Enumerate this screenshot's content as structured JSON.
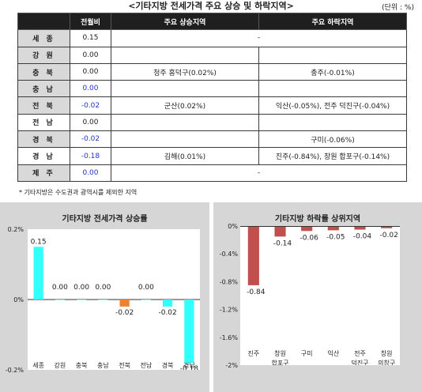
{
  "header": {
    "title": "<기타지방 전세가격 주요 상승 및 하락지역>",
    "unit": "(단위 : %)"
  },
  "table": {
    "columns": [
      "",
      "전월비",
      "주요 상승지역",
      "주요 하락지역"
    ],
    "rows": [
      {
        "region": "세 종",
        "value": "0.15",
        "up": "-",
        "down": "",
        "merged": true,
        "highlight": true
      },
      {
        "region": "강 원",
        "value": "0.00",
        "up": "",
        "down": "",
        "highlight": true
      },
      {
        "region": "충 북",
        "value": "0.00",
        "up": "청주 흥덕구(0.02%)",
        "down": "충주(-0.01%)",
        "highlight": true
      },
      {
        "region": "충 남",
        "value": "0.00",
        "up": "",
        "down": "",
        "highlight": true,
        "blue": true
      },
      {
        "region": "전 북",
        "value": "-0.02",
        "up": "군산(0.02%)",
        "down": "익산(-0.05%), 전주 덕진구(-0.04%)",
        "highlight": true,
        "blue": true
      },
      {
        "region": "전 남",
        "value": "0.00",
        "up": "",
        "down": "",
        "highlight": false
      },
      {
        "region": "경 북",
        "value": "-0.02",
        "up": "",
        "down": "구미(-0.06%)",
        "highlight": true,
        "blue": true
      },
      {
        "region": "경 남",
        "value": "-0.18",
        "up": "김해(0.01%)",
        "down": "진주(-0.84%), 창원 합포구(-0.14%)",
        "highlight": false,
        "blue": true
      },
      {
        "region": "제 주",
        "value": "0.00",
        "up": "-",
        "down": "",
        "merged": true,
        "highlight": true,
        "blue": true
      }
    ]
  },
  "footnote": "* 기타지방은 수도권과 광역시를 제외한 지역",
  "chart_data": [
    {
      "type": "bar",
      "title": "기타지방 전세가격 상승률",
      "categories": [
        "세종",
        "강원",
        "충북",
        "충남",
        "전북",
        "전남",
        "경북",
        "경남"
      ],
      "values": [
        0.15,
        0.0,
        0.0,
        0.0,
        -0.02,
        0.0,
        -0.02,
        -0.18
      ],
      "value_labels": [
        "0.15",
        "0.00",
        "0.00",
        "0.00",
        "-0.02",
        "0.00",
        "-0.02",
        "-0.18"
      ],
      "ylim": [
        -0.2,
        0.2
      ],
      "yticks": [
        0.2,
        0,
        -0.2
      ],
      "ytick_labels": [
        "0.2%",
        "0%",
        "-0.2%"
      ],
      "colors": [
        "#33ffff",
        "#33ffff",
        "#33ffff",
        "#33ffff",
        "#f08030",
        "#33ffff",
        "#33ffff",
        "#33ffff"
      ],
      "grid": false
    },
    {
      "type": "bar",
      "title": "기타지방 하락률 상위지역",
      "categories": [
        [
          "진주"
        ],
        [
          "창원",
          "합포구"
        ],
        [
          "구미"
        ],
        [
          "익산"
        ],
        [
          "전주",
          "덕진구"
        ],
        [
          "창원",
          "의창구"
        ]
      ],
      "values": [
        -0.84,
        -0.14,
        -0.06,
        -0.05,
        -0.04,
        -0.02
      ],
      "value_labels": [
        "-0.84",
        "-0.14",
        "-0.06",
        "-0.05",
        "-0.04",
        "-0.02"
      ],
      "ylim": [
        -2,
        0
      ],
      "yticks": [
        0,
        -0.4,
        -0.8,
        -1.2,
        -1.6,
        -2
      ],
      "ytick_labels": [
        "0%",
        "-0.4%",
        "-0.8%",
        "-1.2%",
        "-1.6%",
        "-2%"
      ],
      "color": "#c0504d",
      "grid": false
    }
  ]
}
